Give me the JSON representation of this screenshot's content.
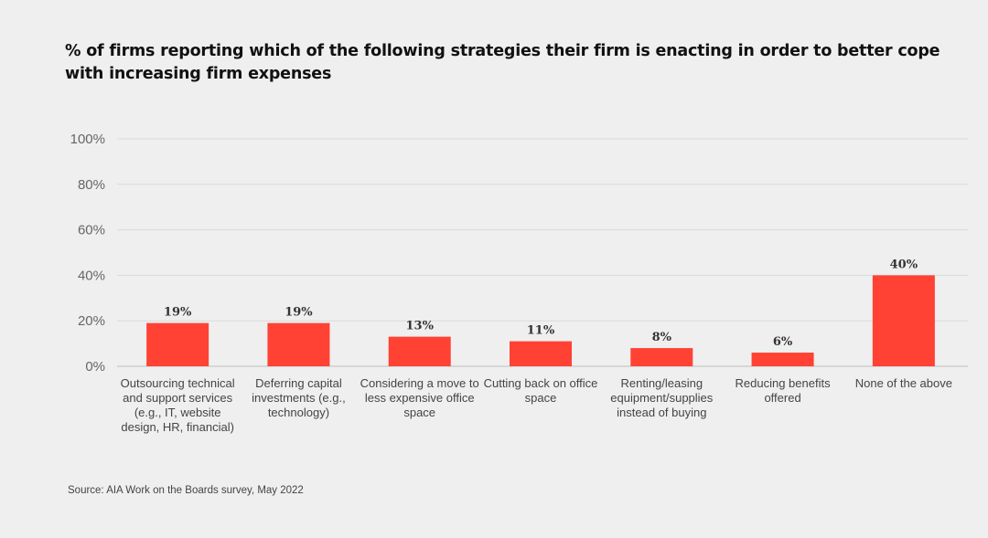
{
  "chart_data": {
    "type": "bar",
    "title": "% of firms reporting which of the following strategies their firm is enacting in order to better cope with increasing firm expenses",
    "categories": [
      "Outsourcing technical and support services (e.g., IT, website design, HR, financial)",
      "Deferring capital investments (e.g., technology)",
      "Considering a move to less expensive office space",
      "Cutting back on office space",
      "Renting/leasing equipment/supplies instead of buying",
      "Reducing benefits offered",
      "None of the above"
    ],
    "values": [
      19,
      19,
      13,
      11,
      8,
      6,
      40
    ],
    "value_labels": [
      "19%",
      "19%",
      "13%",
      "11%",
      "8%",
      "6%",
      "40%"
    ],
    "ylim": [
      0,
      100
    ],
    "yticks": [
      0,
      20,
      40,
      60,
      80,
      100
    ],
    "ytick_labels": [
      "0%",
      "20%",
      "40%",
      "60%",
      "80%",
      "100%"
    ],
    "grid": true,
    "legend": "none",
    "bar_color": "#ff4233",
    "source": "Source: AIA Work on the Boards survey, May 2022"
  }
}
